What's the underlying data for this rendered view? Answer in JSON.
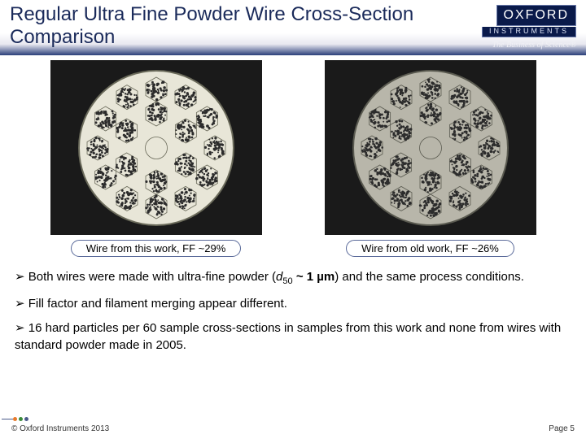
{
  "header": {
    "title": "Regular Ultra Fine Powder Wire Cross-Section Comparison",
    "logo_main": "OXFORD",
    "logo_sub": "INSTRUMENTS",
    "tagline": "The Business of Science®"
  },
  "images": {
    "left": {
      "caption": "Wire from this work, FF ~29%",
      "outer_bg": "#e8e6d8",
      "filament_fill": "#2c2c2c",
      "ring_stroke": "#6a6a5a"
    },
    "right": {
      "caption": "Wire from old work, FF ~26%",
      "outer_bg": "#b8b6aa",
      "filament_fill": "#2c2c2c",
      "ring_stroke": "#5a5a50"
    },
    "structure": {
      "type": "wire-cross-section",
      "outer_radius": 95,
      "ring1_radius": 72,
      "ring1_count": 12,
      "ring2_radius": 42,
      "ring2_count": 6,
      "center_count": 1,
      "filament_radius": 15
    }
  },
  "bullets": [
    "Both wires were made with ultra-fine powder (d₅₀ ~ 1 µm) and the same process conditions.",
    "Fill factor and filament merging appear different.",
    "16 hard particles per 60 sample cross-sections in samples from this work and none from wires with standard powder made in 2005."
  ],
  "footer": {
    "copyright": "© Oxford Instruments 2013",
    "page": "Page 5",
    "dot_colors": [
      "#e87a2a",
      "#3a8a3a",
      "#4a5a8a"
    ]
  },
  "colors": {
    "title_color": "#1a2a5a",
    "header_grad_end": "#2a3f7a",
    "caption_border": "#5a6a9a"
  }
}
